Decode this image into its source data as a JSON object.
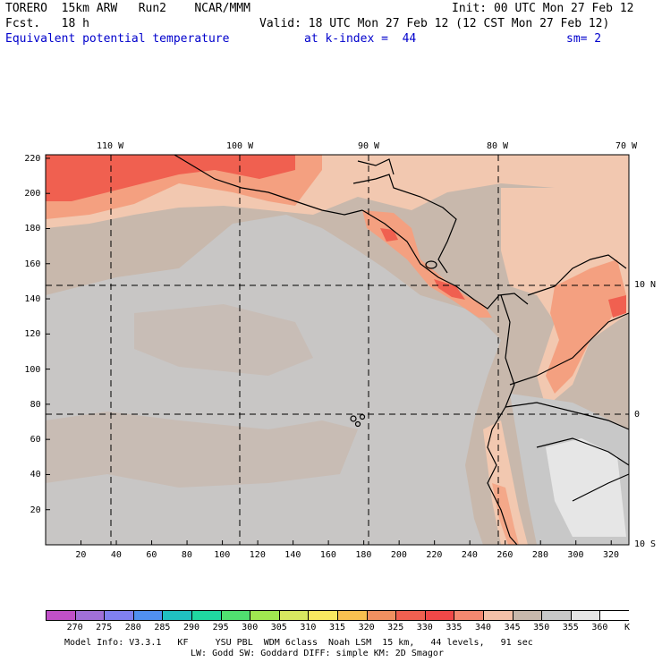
{
  "header": {
    "model": "TORERO  15km ARW   Run2    NCAR/MMM",
    "init": "Init: 00 UTC Mon 27 Feb 12",
    "fcst": "Fcst.   18 h",
    "valid": "Valid: 18 UTC Mon 27 Feb 12 (12 CST Mon 27 Feb 12)",
    "field": "Equivalent potential temperature",
    "level": "at k-index =  44",
    "smooth": "sm= 2"
  },
  "map": {
    "lon_labels": [
      "110 W",
      "100 W",
      "90 W",
      "80 W",
      "70 W"
    ],
    "lat_labels": [
      "10 N",
      "0",
      "10 S"
    ],
    "y_ticks": [
      "220",
      "200",
      "180",
      "160",
      "140",
      "120",
      "100",
      "80",
      "60",
      "40",
      "20"
    ],
    "x_ticks": [
      "20",
      "40",
      "60",
      "80",
      "100",
      "120",
      "140",
      "160",
      "180",
      "200",
      "220",
      "240",
      "260",
      "280",
      "300",
      "320"
    ],
    "colors": {
      "background": "#c8b8ac",
      "cool": "#c8c8c8",
      "lighter": "#e6e6e6",
      "warm_light": "#f2c8b0",
      "warm": "#f4a080",
      "hot": "#f06050",
      "coast": "#000000"
    }
  },
  "colorbar": {
    "labels": [
      "270",
      "275",
      "280",
      "285",
      "290",
      "295",
      "300",
      "305",
      "310",
      "315",
      "320",
      "325",
      "330",
      "335",
      "340",
      "345",
      "350",
      "355",
      "360"
    ],
    "unit": "K",
    "colors": [
      "#c050c8",
      "#a070d8",
      "#8080f0",
      "#5090f0",
      "#20c0c0",
      "#20d8a0",
      "#50e070",
      "#a0e850",
      "#d8e860",
      "#f8e860",
      "#f8c050",
      "#f09060",
      "#f06050",
      "#f04848",
      "#f48870",
      "#f4c0a8",
      "#c8b8ac",
      "#c8c8c8",
      "#e6e6e6",
      "#ffffff"
    ]
  },
  "footer": {
    "line1": "Model Info: V3.3.1   KF     YSU PBL  WDM 6class  Noah LSM  15 km,   44 levels,   91 sec",
    "line2": "LW: Godd SW: Goddard DIFF: simple KM: 2D Smagor"
  }
}
